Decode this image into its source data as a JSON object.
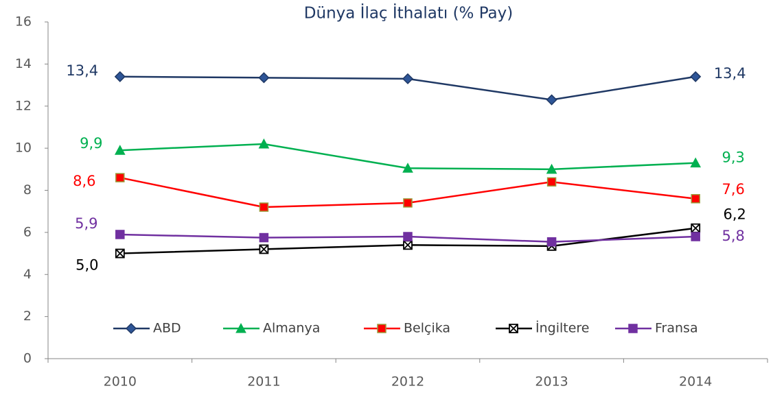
{
  "chart_data": {
    "type": "line",
    "title": "Dünya İlaç İthalatı (% Pay)",
    "categories": [
      "2010",
      "2011",
      "2012",
      "2013",
      "2014"
    ],
    "ylim": [
      0,
      16
    ],
    "yticks": [
      0,
      2,
      4,
      6,
      8,
      10,
      12,
      14,
      16
    ],
    "grid": false,
    "legend": "bottom",
    "series": [
      {
        "name": "ABD",
        "color": "#1f3864",
        "marker": "diamond",
        "values": [
          13.4,
          13.35,
          13.3,
          12.3,
          13.4
        ],
        "value_labels": [
          "13,4",
          null,
          null,
          null,
          "13,4"
        ]
      },
      {
        "name": "Almanya",
        "color": "#00b050",
        "marker": "triangle",
        "values": [
          9.9,
          10.2,
          9.05,
          9.0,
          9.3
        ],
        "value_labels": [
          "9,9",
          null,
          null,
          null,
          "9,3"
        ]
      },
      {
        "name": "Belçika",
        "color": "#ff0000",
        "marker": "square",
        "values": [
          8.6,
          7.2,
          7.4,
          8.4,
          7.6
        ],
        "value_labels": [
          "8,6",
          null,
          null,
          null,
          "7,6"
        ]
      },
      {
        "name": "İngiltere",
        "color": "#000000",
        "marker": "xsquare",
        "values": [
          5.0,
          5.2,
          5.4,
          5.35,
          6.2
        ],
        "value_labels": [
          "5,0",
          null,
          null,
          null,
          "6,2"
        ]
      },
      {
        "name": "Fransa",
        "color": "#7030a0",
        "marker": "square",
        "values": [
          5.9,
          5.75,
          5.8,
          5.55,
          5.8
        ],
        "value_labels": [
          "5,9",
          null,
          null,
          null,
          "5,8"
        ]
      }
    ]
  }
}
